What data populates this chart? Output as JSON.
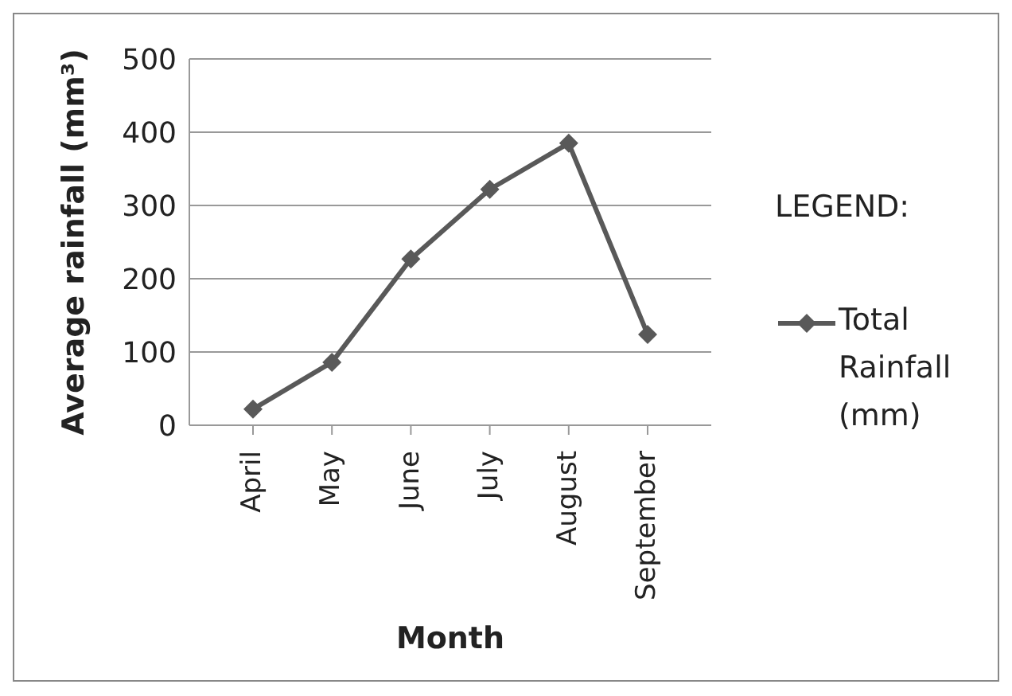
{
  "chart_data": {
    "type": "line",
    "xlabel": "Month",
    "ylabel": "Average rainfall (mm³)",
    "legend_title": "LEGEND:",
    "categories": [
      "April",
      "May",
      "June",
      "July",
      "August",
      "September"
    ],
    "series": [
      {
        "name": "Total Rainfall (mm)",
        "color": "#595959",
        "values": [
          22,
          86,
          227,
          322,
          385,
          124
        ]
      }
    ],
    "ylim": [
      0,
      500
    ],
    "yticks": [
      0,
      100,
      200,
      300,
      400,
      500
    ],
    "grid": "y",
    "legend": "right",
    "marker": "diamond",
    "line_style": "solid"
  }
}
